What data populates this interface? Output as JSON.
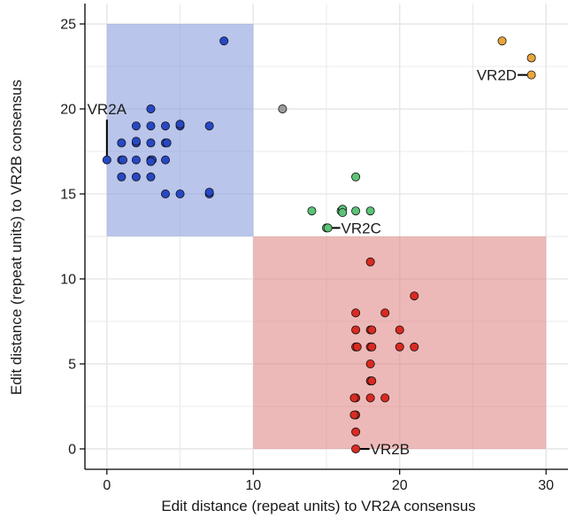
{
  "chart_data": {
    "type": "scatter",
    "title": "",
    "xlabel": "Edit distance (repeat units) to VR2A consensus",
    "ylabel": "Edit distance (repeat units) to VR2B consensus",
    "xlim": [
      -1.5,
      31.5
    ],
    "ylim": [
      -1.2,
      26.2
    ],
    "x_ticks": [
      0,
      10,
      20,
      30
    ],
    "y_ticks": [
      0,
      5,
      10,
      15,
      20,
      25
    ],
    "x_tick_labels": [
      "0",
      "10",
      "20",
      "30"
    ],
    "y_tick_labels": [
      "0",
      "5",
      "10",
      "15",
      "20",
      "25"
    ],
    "grid": true,
    "regions": [
      {
        "name": "VR2A region",
        "x": [
          0,
          10
        ],
        "y": [
          12.5,
          25
        ],
        "color": "#8196da"
      },
      {
        "name": "VR2B region",
        "x": [
          10,
          30
        ],
        "y": [
          0,
          12.5
        ],
        "color": "#de7f7d"
      }
    ],
    "series": [
      {
        "color": "#2748c5",
        "points": [
          [
            8,
            24
          ],
          [
            3,
            20
          ],
          [
            2,
            19
          ],
          [
            3,
            19
          ],
          [
            4,
            19
          ],
          [
            5,
            19
          ],
          [
            5,
            19.1
          ],
          [
            7,
            19
          ],
          [
            1,
            18
          ],
          [
            2,
            18
          ],
          [
            2,
            18.1
          ],
          [
            3,
            18
          ],
          [
            4,
            18
          ],
          [
            4.1,
            18
          ],
          [
            0,
            17
          ],
          [
            1,
            17
          ],
          [
            1.1,
            17
          ],
          [
            2,
            17
          ],
          [
            3,
            17
          ],
          [
            3.1,
            17
          ],
          [
            4,
            17
          ],
          [
            3,
            16.9
          ],
          [
            1,
            16
          ],
          [
            2,
            16
          ],
          [
            3,
            16
          ],
          [
            4,
            15
          ],
          [
            5,
            15
          ],
          [
            7,
            15
          ],
          [
            7,
            15.1
          ]
        ]
      },
      {
        "color": "#9a9a9a",
        "points": [
          [
            12,
            20
          ]
        ]
      },
      {
        "color": "#5cc377",
        "points": [
          [
            17,
            16
          ],
          [
            14,
            14
          ],
          [
            16,
            14
          ],
          [
            16.1,
            14.1
          ],
          [
            17,
            14
          ],
          [
            18,
            14
          ],
          [
            16.1,
            13.9
          ],
          [
            15,
            13
          ],
          [
            15.1,
            13
          ]
        ]
      },
      {
        "color": "#e8a53b",
        "points": [
          [
            27,
            24
          ],
          [
            29,
            23
          ],
          [
            29,
            22
          ]
        ]
      },
      {
        "color": "#d92a22",
        "points": [
          [
            18,
            11
          ],
          [
            21,
            9
          ],
          [
            17,
            8
          ],
          [
            19,
            8
          ],
          [
            17,
            7
          ],
          [
            18,
            7
          ],
          [
            18.1,
            7
          ],
          [
            20,
            7
          ],
          [
            17,
            6
          ],
          [
            17.1,
            6
          ],
          [
            18,
            6
          ],
          [
            18.1,
            6
          ],
          [
            20,
            6
          ],
          [
            21,
            6
          ],
          [
            18,
            5
          ],
          [
            18,
            4
          ],
          [
            18.1,
            4
          ],
          [
            17,
            3
          ],
          [
            16.9,
            3
          ],
          [
            18,
            3
          ],
          [
            19,
            3
          ],
          [
            17,
            2
          ],
          [
            16.9,
            2
          ],
          [
            17,
            1
          ],
          [
            17,
            0
          ]
        ]
      }
    ],
    "annotations": [
      {
        "text": "VR2A",
        "x": 0,
        "y": 17,
        "label_x": 0,
        "label_y": 20,
        "anchor": "middle"
      },
      {
        "text": "VR2B",
        "x": 17,
        "y": 0,
        "label_x": 18,
        "label_y": 0,
        "anchor": "start"
      },
      {
        "text": "VR2C",
        "x": 15,
        "y": 13,
        "label_x": 16,
        "label_y": 13,
        "anchor": "start"
      },
      {
        "text": "VR2D",
        "x": 29,
        "y": 22,
        "label_x": 28,
        "label_y": 22,
        "anchor": "end"
      }
    ],
    "colors": {
      "grid": "#e8e8e8",
      "axis": "#000000",
      "point_stroke": "#111111"
    }
  }
}
